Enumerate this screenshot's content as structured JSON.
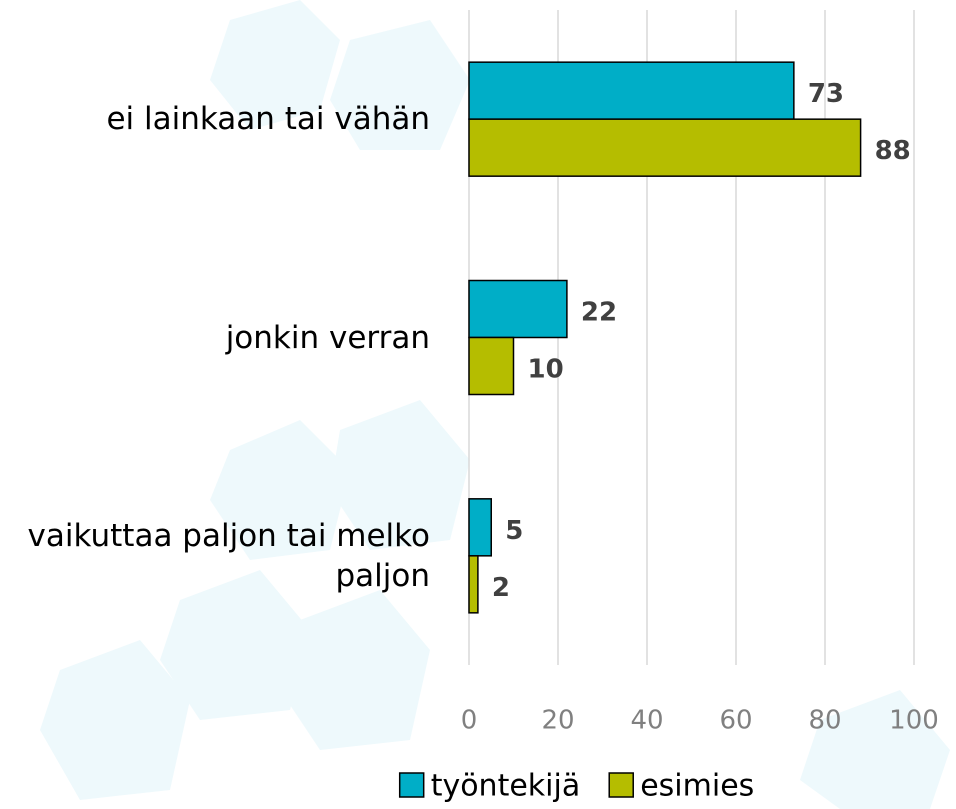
{
  "chart_data": {
    "type": "bar",
    "orientation": "horizontal",
    "categories": [
      "ei lainkaan tai vähän",
      "jonkin verran",
      "vaikuttaa paljon tai melko paljon"
    ],
    "series": [
      {
        "name": "työntekijä",
        "color": "#00aec7",
        "values": [
          73,
          22,
          5
        ]
      },
      {
        "name": "esimies",
        "color": "#b5bd00",
        "values": [
          88,
          10,
          2
        ]
      }
    ],
    "xlim": [
      0,
      100
    ],
    "xticks": [
      0,
      20,
      40,
      60,
      80,
      100
    ],
    "grid": true,
    "legend": "bottom"
  }
}
